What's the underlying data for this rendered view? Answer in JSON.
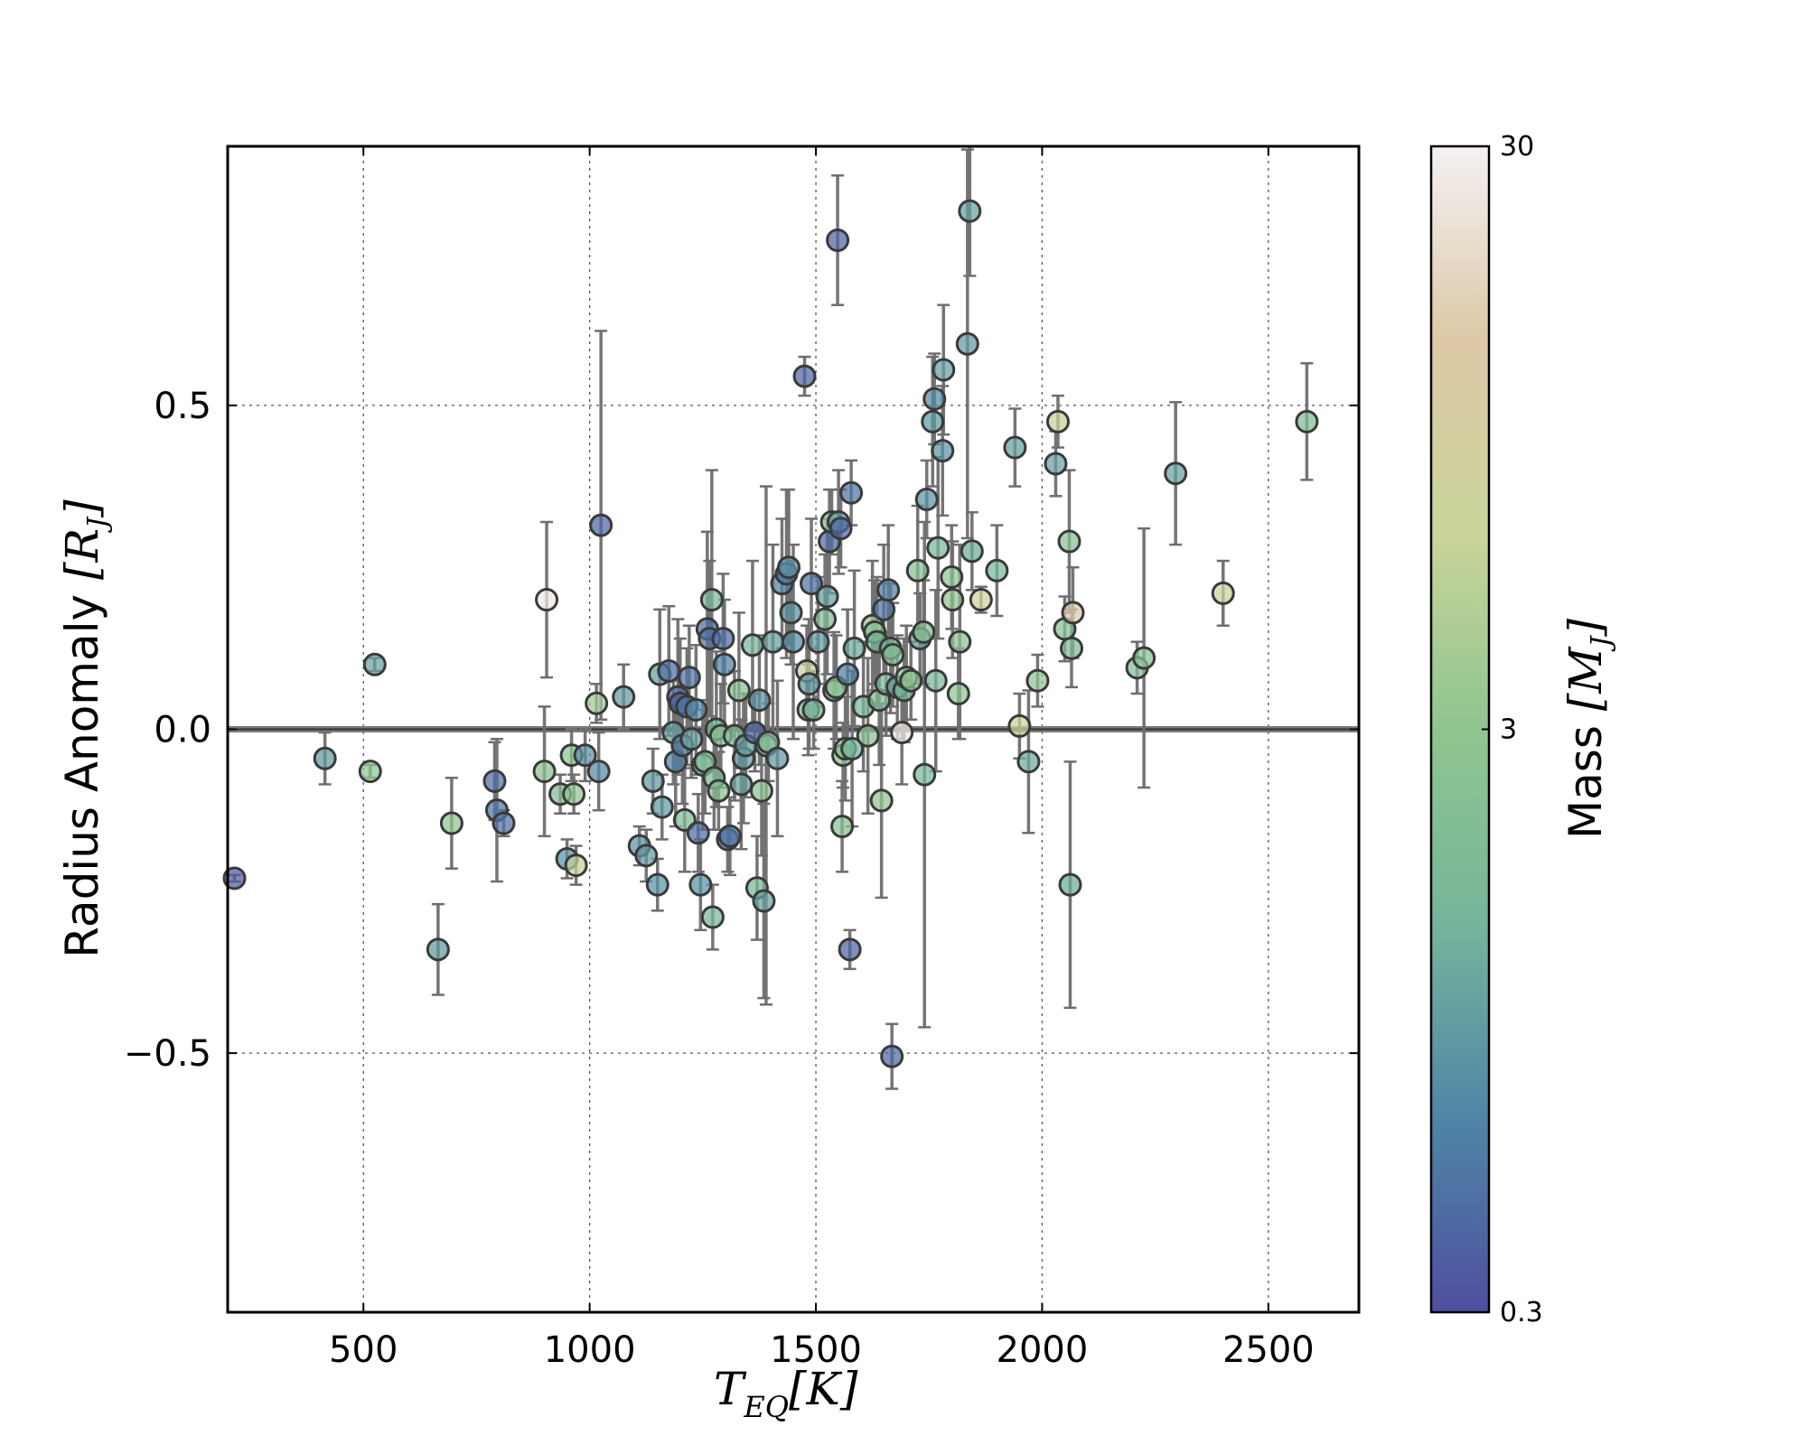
{
  "chart_data": {
    "type": "scatter",
    "xlabel": "T",
    "xlabel_sub": "EQ",
    "xlabel_unit": "[K]",
    "ylabel": "Radius Anomaly ",
    "ylabel_symbol": "[R",
    "ylabel_sub": "J",
    "ylabel_close": "]",
    "xlim": [
      200,
      2700
    ],
    "ylim": [
      -0.9,
      0.9
    ],
    "xticks": [
      500,
      1000,
      1500,
      2000,
      2500
    ],
    "xtick_labels": [
      "500",
      "1000",
      "1500",
      "2000",
      "2500"
    ],
    "yticks": [
      -0.5,
      0.0,
      0.5
    ],
    "ytick_labels": [
      "−0.5",
      "0.0",
      "0.5"
    ],
    "grid": true,
    "reference_line_y": 0.0,
    "colorbar": {
      "label": "Mass ",
      "label_symbol": "[M",
      "label_sub": "J",
      "label_close": "]",
      "scale": "log",
      "range": [
        0.3,
        30
      ],
      "ticks": [
        30,
        3,
        0.3
      ],
      "tick_labels": [
        "30",
        "3",
        "0.3"
      ],
      "colors": [
        "#4f4fa0",
        "#4f86a6",
        "#76b59a",
        "#8fc58f",
        "#c9d49a",
        "#dcc8a6",
        "#f4f1f4"
      ]
    },
    "points": [
      {
        "x": 215,
        "y": -0.23,
        "e": 0.005,
        "m": 0.35
      },
      {
        "x": 415,
        "y": -0.045,
        "e": 0.04,
        "m": 0.9
      },
      {
        "x": 515,
        "y": -0.065,
        "e": 0.01,
        "m": 3.0
      },
      {
        "x": 525,
        "y": 0.1,
        "e": 0.01,
        "m": 1.0
      },
      {
        "x": 665,
        "y": -0.34,
        "e": 0.07,
        "m": 0.9
      },
      {
        "x": 695,
        "y": -0.145,
        "e": 0.07,
        "m": 3.0
      },
      {
        "x": 790,
        "y": -0.08,
        "e": 0.06,
        "m": 0.45
      },
      {
        "x": 795,
        "y": -0.125,
        "e": 0.11,
        "m": 0.5
      },
      {
        "x": 810,
        "y": -0.145,
        "e": 0.02,
        "m": 0.5
      },
      {
        "x": 900,
        "y": -0.065,
        "e": 0.1,
        "m": 2.5
      },
      {
        "x": 905,
        "y": 0.2,
        "e": 0.12,
        "m": 25
      },
      {
        "x": 935,
        "y": -0.1,
        "e": 0.03,
        "m": 2.0
      },
      {
        "x": 950,
        "y": -0.2,
        "e": 0.03,
        "m": 0.8
      },
      {
        "x": 960,
        "y": -0.04,
        "e": 0.04,
        "m": 3.0
      },
      {
        "x": 965,
        "y": -0.1,
        "e": 0.03,
        "m": 3.0
      },
      {
        "x": 970,
        "y": -0.21,
        "e": 0.03,
        "m": 6.0
      },
      {
        "x": 990,
        "y": -0.04,
        "e": 0.04,
        "m": 0.8
      },
      {
        "x": 1015,
        "y": 0.04,
        "e": 0.03,
        "m": 4.0
      },
      {
        "x": 1020,
        "y": -0.065,
        "e": 0.06,
        "m": 0.7
      },
      {
        "x": 1025,
        "y": 0.315,
        "e": 0.3,
        "m": 0.4
      },
      {
        "x": 1075,
        "y": 0.05,
        "e": 0.05,
        "m": 0.9
      },
      {
        "x": 1110,
        "y": -0.18,
        "e": 0.03,
        "m": 0.8
      },
      {
        "x": 1125,
        "y": -0.195,
        "e": 0.04,
        "m": 0.9
      },
      {
        "x": 1140,
        "y": -0.08,
        "e": 0.05,
        "m": 0.9
      },
      {
        "x": 1150,
        "y": -0.24,
        "e": 0.04,
        "m": 0.8
      },
      {
        "x": 1155,
        "y": 0.085,
        "e": 0.1,
        "m": 1.0
      },
      {
        "x": 1160,
        "y": -0.12,
        "e": 0.05,
        "m": 0.9
      },
      {
        "x": 1175,
        "y": 0.09,
        "e": 0.1,
        "m": 0.45
      },
      {
        "x": 1185,
        "y": -0.005,
        "e": 0.08,
        "m": 1.0
      },
      {
        "x": 1190,
        "y": -0.05,
        "e": 0.1,
        "m": 0.6
      },
      {
        "x": 1195,
        "y": 0.05,
        "e": 0.12,
        "m": 0.45
      },
      {
        "x": 1200,
        "y": 0.04,
        "e": 0.1,
        "m": 0.4
      },
      {
        "x": 1205,
        "y": -0.025,
        "e": 0.09,
        "m": 0.6
      },
      {
        "x": 1210,
        "y": -0.14,
        "e": 0.08,
        "m": 2.0
      },
      {
        "x": 1215,
        "y": 0.035,
        "e": 0.09,
        "m": 0.5
      },
      {
        "x": 1220,
        "y": 0.08,
        "e": 0.08,
        "m": 0.5
      },
      {
        "x": 1225,
        "y": -0.015,
        "e": 0.06,
        "m": 1.0
      },
      {
        "x": 1235,
        "y": 0.03,
        "e": 0.1,
        "m": 0.7
      },
      {
        "x": 1240,
        "y": -0.16,
        "e": 0.06,
        "m": 0.45
      },
      {
        "x": 1245,
        "y": -0.24,
        "e": 0.07,
        "m": 0.8
      },
      {
        "x": 1250,
        "y": -0.055,
        "e": 0.1,
        "m": 1.5
      },
      {
        "x": 1255,
        "y": -0.05,
        "e": 0.08,
        "m": 2.0
      },
      {
        "x": 1260,
        "y": 0.155,
        "e": 0.15,
        "m": 0.45
      },
      {
        "x": 1265,
        "y": 0.14,
        "e": 0.12,
        "m": 0.5
      },
      {
        "x": 1270,
        "y": 0.2,
        "e": 0.2,
        "m": 1.5
      },
      {
        "x": 1272,
        "y": -0.29,
        "e": 0.05,
        "m": 1.5
      },
      {
        "x": 1275,
        "y": -0.075,
        "e": 0.08,
        "m": 2.0
      },
      {
        "x": 1280,
        "y": 0.0,
        "e": 0.12,
        "m": 1.5
      },
      {
        "x": 1285,
        "y": -0.095,
        "e": 0.06,
        "m": 2.5
      },
      {
        "x": 1290,
        "y": -0.01,
        "e": 0.08,
        "m": 2.5
      },
      {
        "x": 1295,
        "y": 0.14,
        "e": 0.1,
        "m": 0.45
      },
      {
        "x": 1298,
        "y": 0.1,
        "e": 0.1,
        "m": 0.6
      },
      {
        "x": 1305,
        "y": -0.17,
        "e": 0.05,
        "m": 0.45
      },
      {
        "x": 1310,
        "y": -0.165,
        "e": 0.06,
        "m": 0.5
      },
      {
        "x": 1320,
        "y": -0.01,
        "e": 0.1,
        "m": 2.0
      },
      {
        "x": 1330,
        "y": 0.06,
        "e": 0.12,
        "m": 2.5
      },
      {
        "x": 1335,
        "y": -0.085,
        "e": 0.1,
        "m": 1.0
      },
      {
        "x": 1340,
        "y": -0.045,
        "e": 0.1,
        "m": 0.9
      },
      {
        "x": 1345,
        "y": -0.025,
        "e": 0.08,
        "m": 1.0
      },
      {
        "x": 1360,
        "y": 0.13,
        "e": 0.13,
        "m": 1.5
      },
      {
        "x": 1365,
        "y": -0.005,
        "e": 0.06,
        "m": 0.4
      },
      {
        "x": 1370,
        "y": -0.245,
        "e": 0.08,
        "m": 1.5
      },
      {
        "x": 1375,
        "y": 0.045,
        "e": 0.1,
        "m": 0.8
      },
      {
        "x": 1380,
        "y": -0.095,
        "e": 0.1,
        "m": 2.5
      },
      {
        "x": 1385,
        "y": -0.265,
        "e": 0.15,
        "m": 1.0
      },
      {
        "x": 1390,
        "y": -0.025,
        "e": 0.4,
        "m": 2.0
      },
      {
        "x": 1395,
        "y": -0.02,
        "e": 0.06,
        "m": 2.0
      },
      {
        "x": 1405,
        "y": 0.135,
        "e": 0.15,
        "m": 1.0
      },
      {
        "x": 1415,
        "y": -0.045,
        "e": 0.12,
        "m": 0.9
      },
      {
        "x": 1425,
        "y": 0.225,
        "e": 0.1,
        "m": 0.6
      },
      {
        "x": 1435,
        "y": 0.24,
        "e": 0.13,
        "m": 0.5
      },
      {
        "x": 1440,
        "y": 0.25,
        "e": 0.12,
        "m": 0.8
      },
      {
        "x": 1445,
        "y": 0.18,
        "e": 0.08,
        "m": 0.8
      },
      {
        "x": 1450,
        "y": 0.135,
        "e": 0.15,
        "m": 0.7
      },
      {
        "x": 1475,
        "y": 0.545,
        "e": 0.03,
        "m": 0.4
      },
      {
        "x": 1480,
        "y": 0.09,
        "e": 0.07,
        "m": 8.0
      },
      {
        "x": 1483,
        "y": 0.03,
        "e": 0.07,
        "m": 2.0
      },
      {
        "x": 1485,
        "y": 0.07,
        "e": 0.1,
        "m": 0.9
      },
      {
        "x": 1490,
        "y": 0.225,
        "e": 0.1,
        "m": 0.5
      },
      {
        "x": 1495,
        "y": 0.03,
        "e": 0.06,
        "m": 1.5
      },
      {
        "x": 1505,
        "y": 0.135,
        "e": 0.1,
        "m": 0.9
      },
      {
        "x": 1520,
        "y": 0.17,
        "e": 0.1,
        "m": 2.0
      },
      {
        "x": 1525,
        "y": 0.205,
        "e": 0.12,
        "m": 1.0
      },
      {
        "x": 1530,
        "y": 0.29,
        "e": 0.08,
        "m": 0.45
      },
      {
        "x": 1535,
        "y": 0.32,
        "e": 0.05,
        "m": 2.5
      },
      {
        "x": 1540,
        "y": 0.06,
        "e": 0.09,
        "m": 1.5
      },
      {
        "x": 1545,
        "y": 0.065,
        "e": 0.08,
        "m": 3.0
      },
      {
        "x": 1548,
        "y": 0.755,
        "e": 0.1,
        "m": 0.4
      },
      {
        "x": 1550,
        "y": 0.32,
        "e": 0.08,
        "m": 1.0
      },
      {
        "x": 1555,
        "y": 0.31,
        "e": 0.06,
        "m": 0.4
      },
      {
        "x": 1558,
        "y": -0.15,
        "e": 0.07,
        "m": 2.5
      },
      {
        "x": 1560,
        "y": -0.04,
        "e": 0.05,
        "m": 3.0
      },
      {
        "x": 1565,
        "y": -0.03,
        "e": 0.08,
        "m": 2.5
      },
      {
        "x": 1570,
        "y": 0.085,
        "e": 0.1,
        "m": 0.6
      },
      {
        "x": 1575,
        "y": -0.34,
        "e": 0.03,
        "m": 0.4
      },
      {
        "x": 1578,
        "y": 0.365,
        "e": 0.05,
        "m": 0.5
      },
      {
        "x": 1580,
        "y": -0.03,
        "e": 0.12,
        "m": 1.5
      },
      {
        "x": 1585,
        "y": 0.125,
        "e": 0.12,
        "m": 1.2
      },
      {
        "x": 1605,
        "y": 0.035,
        "e": 0.1,
        "m": 1.5
      },
      {
        "x": 1615,
        "y": -0.01,
        "e": 0.12,
        "m": 2.5
      },
      {
        "x": 1625,
        "y": 0.16,
        "e": 0.1,
        "m": 3.5
      },
      {
        "x": 1630,
        "y": 0.15,
        "e": 0.08,
        "m": 2.5
      },
      {
        "x": 1635,
        "y": 0.135,
        "e": 0.1,
        "m": 1.5
      },
      {
        "x": 1640,
        "y": 0.045,
        "e": 0.1,
        "m": 2.0
      },
      {
        "x": 1645,
        "y": -0.11,
        "e": 0.15,
        "m": 3.0
      },
      {
        "x": 1650,
        "y": 0.185,
        "e": 0.1,
        "m": 0.5
      },
      {
        "x": 1655,
        "y": 0.07,
        "e": 0.08,
        "m": 1.5
      },
      {
        "x": 1660,
        "y": 0.215,
        "e": 0.1,
        "m": 0.6
      },
      {
        "x": 1665,
        "y": 0.125,
        "e": 0.1,
        "m": 1.5
      },
      {
        "x": 1668,
        "y": -0.505,
        "e": 0.05,
        "m": 0.4
      },
      {
        "x": 1670,
        "y": 0.115,
        "e": 0.08,
        "m": 2.0
      },
      {
        "x": 1680,
        "y": 0.065,
        "e": 0.08,
        "m": 1.0
      },
      {
        "x": 1690,
        "y": -0.005,
        "e": 0.08,
        "m": 25
      },
      {
        "x": 1695,
        "y": 0.06,
        "e": 0.08,
        "m": 1.5
      },
      {
        "x": 1700,
        "y": 0.08,
        "e": 0.08,
        "m": 3.0
      },
      {
        "x": 1710,
        "y": 0.075,
        "e": 0.06,
        "m": 2.5
      },
      {
        "x": 1725,
        "y": 0.245,
        "e": 0.1,
        "m": 2.5
      },
      {
        "x": 1730,
        "y": 0.14,
        "e": 0.07,
        "m": 1.0
      },
      {
        "x": 1738,
        "y": 0.15,
        "e": 0.08,
        "m": 2.5
      },
      {
        "x": 1740,
        "y": -0.07,
        "e": 0.39,
        "m": 1.5
      },
      {
        "x": 1745,
        "y": 0.355,
        "e": 0.06,
        "m": 0.8
      },
      {
        "x": 1758,
        "y": 0.475,
        "e": 0.1,
        "m": 0.9
      },
      {
        "x": 1762,
        "y": 0.51,
        "e": 0.07,
        "m": 0.7
      },
      {
        "x": 1765,
        "y": 0.075,
        "e": 0.14,
        "m": 1.5
      },
      {
        "x": 1770,
        "y": 0.28,
        "e": 0.14,
        "m": 1.5
      },
      {
        "x": 1780,
        "y": 0.43,
        "e": 0.1,
        "m": 0.8
      },
      {
        "x": 1782,
        "y": 0.555,
        "e": 0.1,
        "m": 1.0
      },
      {
        "x": 1800,
        "y": 0.235,
        "e": 0.08,
        "m": 3.0
      },
      {
        "x": 1802,
        "y": 0.2,
        "e": 0.09,
        "m": 3.0
      },
      {
        "x": 1815,
        "y": 0.055,
        "e": 0.07,
        "m": 3.0
      },
      {
        "x": 1818,
        "y": 0.135,
        "e": 0.15,
        "m": 2.5
      },
      {
        "x": 1835,
        "y": 0.595,
        "e": 0.3,
        "m": 0.9
      },
      {
        "x": 1840,
        "y": 0.8,
        "e": 0.1,
        "m": 1.0
      },
      {
        "x": 1845,
        "y": 0.275,
        "e": 0.06,
        "m": 1.2
      },
      {
        "x": 1865,
        "y": 0.2,
        "e": 0.02,
        "m": 8.0
      },
      {
        "x": 1900,
        "y": 0.245,
        "e": 0.07,
        "m": 1.5
      },
      {
        "x": 1940,
        "y": 0.435,
        "e": 0.06,
        "m": 1.0
      },
      {
        "x": 1950,
        "y": 0.005,
        "e": 0.05,
        "m": 7.0
      },
      {
        "x": 1970,
        "y": -0.05,
        "e": 0.11,
        "m": 1.2
      },
      {
        "x": 1990,
        "y": 0.075,
        "e": 0.04,
        "m": 3.0
      },
      {
        "x": 2030,
        "y": 0.41,
        "e": 0.05,
        "m": 1.0
      },
      {
        "x": 2035,
        "y": 0.475,
        "e": 0.04,
        "m": 6.0
      },
      {
        "x": 2050,
        "y": 0.155,
        "e": 0.05,
        "m": 2.5
      },
      {
        "x": 2060,
        "y": 0.29,
        "e": 0.11,
        "m": 2.5
      },
      {
        "x": 2062,
        "y": -0.24,
        "e": 0.19,
        "m": 1.2
      },
      {
        "x": 2065,
        "y": 0.125,
        "e": 0.06,
        "m": 2.0
      },
      {
        "x": 2068,
        "y": 0.18,
        "e": 0.07,
        "m": 15
      },
      {
        "x": 2210,
        "y": 0.095,
        "e": 0.04,
        "m": 2.0
      },
      {
        "x": 2225,
        "y": 0.11,
        "e": 0.2,
        "m": 2.5
      },
      {
        "x": 2295,
        "y": 0.395,
        "e": 0.11,
        "m": 1.0
      },
      {
        "x": 2400,
        "y": 0.21,
        "e": 0.05,
        "m": 8.0
      },
      {
        "x": 2585,
        "y": 0.475,
        "e": 0.09,
        "m": 2.0
      }
    ]
  }
}
